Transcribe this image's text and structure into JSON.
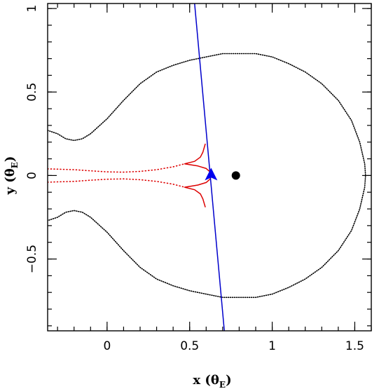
{
  "chart_data": {
    "type": "scatter",
    "title": "",
    "xlabel": {
      "main": "x (θ",
      "sub": "E",
      "close": ")"
    },
    "ylabel": {
      "main": "y (θ",
      "sub": "E",
      "close": ")"
    },
    "xlim": [
      -0.36,
      1.6
    ],
    "ylim": [
      -0.93,
      1.03
    ],
    "xticks": [
      {
        "value": 0,
        "label": "0"
      },
      {
        "value": 0.5,
        "label": "0.5"
      },
      {
        "value": 1,
        "label": "1"
      },
      {
        "value": 1.5,
        "label": "1.5"
      }
    ],
    "yticks": [
      {
        "value": -0.5,
        "label": "−0.5"
      },
      {
        "value": 0,
        "label": "0"
      },
      {
        "value": 0.5,
        "label": "0.5"
      },
      {
        "value": 1,
        "label": "1"
      }
    ],
    "critical_curve": {
      "color": "#000000",
      "style": "dotted",
      "points": [
        [
          -0.36,
          0.27
        ],
        [
          -0.3,
          0.25
        ],
        [
          -0.25,
          0.22
        ],
        [
          -0.2,
          0.21
        ],
        [
          -0.15,
          0.22
        ],
        [
          -0.1,
          0.25
        ],
        [
          0,
          0.34
        ],
        [
          0.1,
          0.45
        ],
        [
          0.2,
          0.55
        ],
        [
          0.3,
          0.62
        ],
        [
          0.4,
          0.66
        ],
        [
          0.5,
          0.69
        ],
        [
          0.6,
          0.71
        ],
        [
          0.7,
          0.73
        ],
        [
          0.8,
          0.73
        ],
        [
          0.9,
          0.73
        ],
        [
          1.0,
          0.71
        ],
        [
          1.1,
          0.67
        ],
        [
          1.2,
          0.62
        ],
        [
          1.3,
          0.55
        ],
        [
          1.4,
          0.45
        ],
        [
          1.48,
          0.33
        ],
        [
          1.53,
          0.2
        ],
        [
          1.56,
          0.07
        ],
        [
          1.565,
          0
        ],
        [
          1.56,
          -0.07
        ],
        [
          1.53,
          -0.2
        ],
        [
          1.48,
          -0.33
        ],
        [
          1.4,
          -0.45
        ],
        [
          1.3,
          -0.55
        ],
        [
          1.2,
          -0.62
        ],
        [
          1.1,
          -0.67
        ],
        [
          1.0,
          -0.71
        ],
        [
          0.9,
          -0.73
        ],
        [
          0.8,
          -0.73
        ],
        [
          0.7,
          -0.73
        ],
        [
          0.6,
          -0.71
        ],
        [
          0.5,
          -0.69
        ],
        [
          0.4,
          -0.66
        ],
        [
          0.3,
          -0.62
        ],
        [
          0.2,
          -0.55
        ],
        [
          0.1,
          -0.45
        ],
        [
          0,
          -0.34
        ],
        [
          -0.1,
          -0.25
        ],
        [
          -0.15,
          -0.22
        ],
        [
          -0.2,
          -0.21
        ],
        [
          -0.25,
          -0.22
        ],
        [
          -0.3,
          -0.25
        ],
        [
          -0.36,
          -0.27
        ]
      ]
    },
    "caustic_solid": {
      "color": "#dd0000",
      "points": [
        [
          0.595,
          0.19
        ],
        [
          0.58,
          0.14
        ],
        [
          0.565,
          0.11
        ],
        [
          0.53,
          0.085
        ],
        [
          0.47,
          0.07
        ],
        [
          0.47,
          0.07
        ],
        [
          0.55,
          0.057
        ],
        [
          0.6,
          0.042
        ],
        [
          0.625,
          0.02
        ],
        [
          0.63,
          0.0
        ],
        [
          0.625,
          -0.02
        ],
        [
          0.6,
          -0.042
        ],
        [
          0.55,
          -0.057
        ],
        [
          0.47,
          -0.07
        ],
        [
          0.47,
          -0.07
        ],
        [
          0.53,
          -0.085
        ],
        [
          0.565,
          -0.11
        ],
        [
          0.58,
          -0.14
        ],
        [
          0.595,
          -0.19
        ]
      ]
    },
    "caustic_dotted": {
      "color": "#dd0000",
      "upper": [
        [
          -0.36,
          0.04
        ],
        [
          -0.2,
          0.035
        ],
        [
          -0.1,
          0.028
        ],
        [
          0,
          0.022
        ],
        [
          0.1,
          0.02
        ],
        [
          0.2,
          0.025
        ],
        [
          0.3,
          0.035
        ],
        [
          0.4,
          0.052
        ],
        [
          0.47,
          0.07
        ]
      ],
      "lower": [
        [
          -0.36,
          -0.04
        ],
        [
          -0.2,
          -0.035
        ],
        [
          -0.1,
          -0.028
        ],
        [
          0,
          -0.022
        ],
        [
          0.1,
          -0.02
        ],
        [
          0.2,
          -0.025
        ],
        [
          0.3,
          -0.035
        ],
        [
          0.4,
          -0.052
        ],
        [
          0.47,
          -0.07
        ]
      ]
    },
    "source_trajectory": {
      "color": "#0000cc",
      "points": [
        [
          0.53,
          1.03
        ],
        [
          0.71,
          -0.93
        ]
      ]
    },
    "source_marker": {
      "x": 0.63,
      "y": 0.0,
      "color": "#0000ee",
      "direction_y": 1
    },
    "planet_marker": {
      "x": 0.78,
      "y": 0.0,
      "color": "#000000"
    }
  }
}
